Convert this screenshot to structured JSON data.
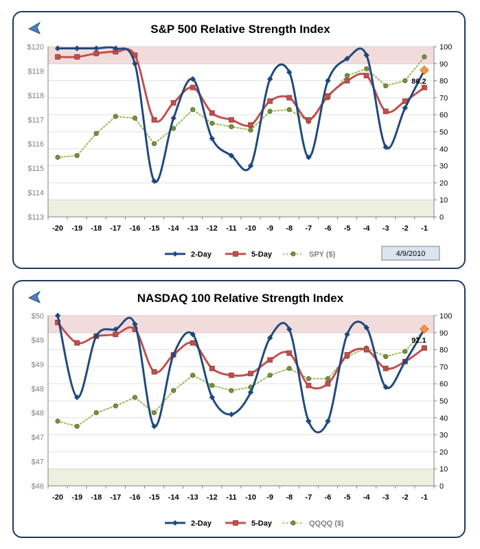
{
  "chart_data": [
    {
      "type": "line",
      "title": "S&P 500 Relative Strength Index",
      "categories": [
        "-20",
        "-19",
        "-18",
        "-17",
        "-16",
        "-15",
        "-14",
        "-13",
        "-12",
        "-11",
        "-10",
        "-9",
        "-8",
        "-7",
        "-6",
        "-5",
        "-4",
        "-3",
        "-2",
        "-1"
      ],
      "y_left_ticks": [
        "$120",
        "$119",
        "$118",
        "$117",
        "$116",
        "$115",
        "$114",
        "$113"
      ],
      "y_right_ticks": [
        "100",
        "90",
        "80",
        "70",
        "60",
        "50",
        "40",
        "30",
        "20",
        "10",
        "0"
      ],
      "ylim_right": [
        0,
        100
      ],
      "overbought_zone": [
        90,
        100
      ],
      "oversold_zone": [
        0,
        10
      ],
      "series": [
        {
          "name": "2-Day",
          "color": "#1f497d",
          "marker": "diamond",
          "smooth": true,
          "values": [
            99,
            99,
            99,
            99,
            90,
            21,
            58,
            81,
            46,
            36,
            30,
            81,
            85,
            35,
            80,
            93,
            95,
            41,
            64,
            86.2
          ]
        },
        {
          "name": "5-Day",
          "color": "#c0504d",
          "marker": "square",
          "smooth": true,
          "values": [
            94,
            94,
            96,
            97,
            95,
            57,
            67,
            76,
            61,
            57,
            54,
            68,
            70,
            57,
            71,
            80,
            83,
            62,
            68,
            76
          ]
        },
        {
          "name": "SPY ($)",
          "color": "#9bbb59",
          "marker": "circle",
          "dotted": true,
          "values": [
            35,
            36,
            49,
            59,
            58,
            43,
            52,
            63,
            55,
            53,
            51,
            62,
            63,
            56,
            70,
            83,
            87,
            77,
            80,
            94
          ]
        }
      ],
      "annotation": {
        "text": "86.2",
        "series": "2-Day",
        "category": "-1"
      },
      "date_label": "4/9/2010"
    },
    {
      "type": "line",
      "title": "NASDAQ 100 Relative Strength Index",
      "categories": [
        "-20",
        "-19",
        "-18",
        "-17",
        "-16",
        "-15",
        "-14",
        "-13",
        "-12",
        "-11",
        "-10",
        "-9",
        "-8",
        "-7",
        "-6",
        "-5",
        "-4",
        "-3",
        "-2",
        "-1"
      ],
      "y_left_ticks": [
        "$50",
        "$49",
        "$49",
        "$48",
        "$48",
        "$47",
        "$47",
        "$46"
      ],
      "y_right_ticks": [
        "100",
        "90",
        "80",
        "70",
        "60",
        "50",
        "40",
        "30",
        "20",
        "10",
        "0"
      ],
      "ylim_right": [
        0,
        100
      ],
      "overbought_zone": [
        90,
        100
      ],
      "oversold_zone": [
        0,
        10
      ],
      "series": [
        {
          "name": "2-Day",
          "color": "#1f497d",
          "marker": "diamond",
          "smooth": true,
          "values": [
            100,
            52,
            88,
            92,
            95,
            35,
            77,
            89,
            52,
            42,
            55,
            87,
            92,
            38,
            38,
            89,
            93,
            58,
            73,
            92.1
          ]
        },
        {
          "name": "5-Day",
          "color": "#c0504d",
          "marker": "square",
          "smooth": true,
          "values": [
            96,
            84,
            88,
            89,
            92,
            67,
            77,
            84,
            69,
            65,
            66,
            74,
            78,
            59,
            60,
            77,
            80,
            69,
            73,
            81
          ]
        },
        {
          "name": "QQQQ ($)",
          "color": "#9bbb59",
          "marker": "circle",
          "dotted": true,
          "values": [
            38,
            35,
            43,
            47,
            52,
            43,
            56,
            65,
            59,
            56,
            58,
            65,
            69,
            63,
            63,
            76,
            81,
            76,
            79,
            92
          ]
        }
      ],
      "annotation": {
        "text": "92.1",
        "series": "2-Day",
        "category": "-1"
      }
    }
  ]
}
